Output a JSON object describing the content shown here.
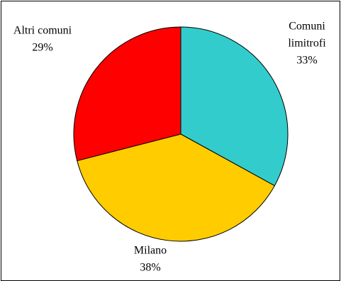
{
  "chart_data": {
    "type": "pie",
    "title": "",
    "slices": [
      {
        "label_lines": [
          "Comuni",
          "limitrofi"
        ],
        "percent_label": "33%",
        "value": 33,
        "color": "#33CCCC"
      },
      {
        "label_lines": [
          "Milano"
        ],
        "percent_label": "38%",
        "value": 38,
        "color": "#FFCC00"
      },
      {
        "label_lines": [
          "Altri comuni"
        ],
        "percent_label": "29%",
        "value": 29,
        "color": "#FF0000"
      }
    ],
    "start_angle": "12 o'clock",
    "direction": "clockwise",
    "legend": "none"
  }
}
